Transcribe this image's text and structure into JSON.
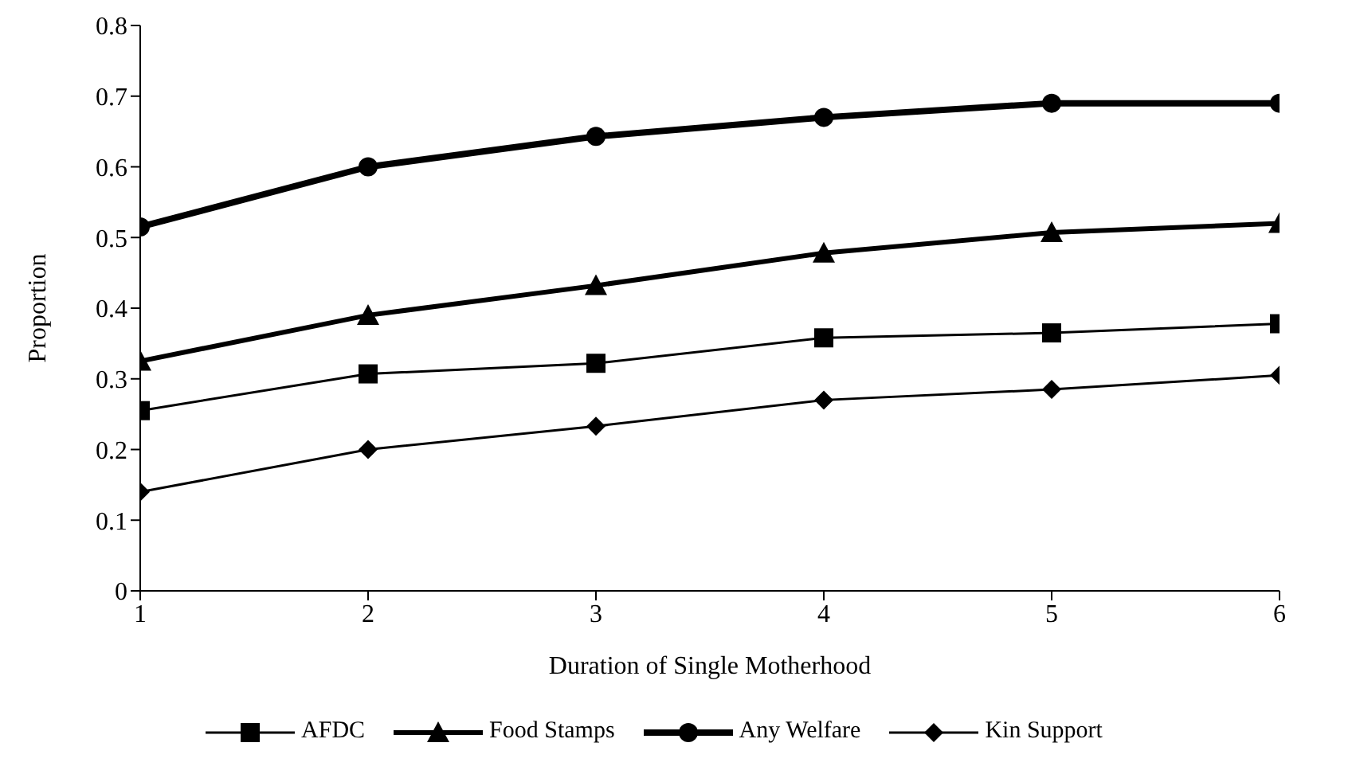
{
  "chart_data": {
    "type": "line",
    "xlabel": "Duration of Single Motherhood",
    "ylabel": "Proportion",
    "x": [
      1,
      2,
      3,
      4,
      5,
      6
    ],
    "xlim": [
      1,
      6
    ],
    "xticks": [
      1,
      2,
      3,
      4,
      5,
      6
    ],
    "ylim": [
      0,
      0.8
    ],
    "yticks": [
      0,
      0.1,
      0.2,
      0.3,
      0.4,
      0.5,
      0.6,
      0.7,
      0.8
    ],
    "grid": false,
    "legend": "bottom",
    "line_style": "solid",
    "series": [
      {
        "name": "AFDC",
        "color": "#000000",
        "marker": "square",
        "values": [
          0.255,
          0.307,
          0.322,
          0.358,
          0.365,
          0.378
        ]
      },
      {
        "name": "Food Stamps",
        "color": "#000000",
        "marker": "triangle",
        "values": [
          0.325,
          0.39,
          0.432,
          0.478,
          0.507,
          0.52
        ]
      },
      {
        "name": "Any Welfare",
        "color": "#000000",
        "marker": "circle",
        "values": [
          0.515,
          0.6,
          0.643,
          0.67,
          0.69,
          0.69
        ]
      },
      {
        "name": "Kin Support",
        "color": "#000000",
        "marker": "diamond",
        "values": [
          0.14,
          0.2,
          0.233,
          0.27,
          0.285,
          0.305
        ]
      }
    ]
  }
}
